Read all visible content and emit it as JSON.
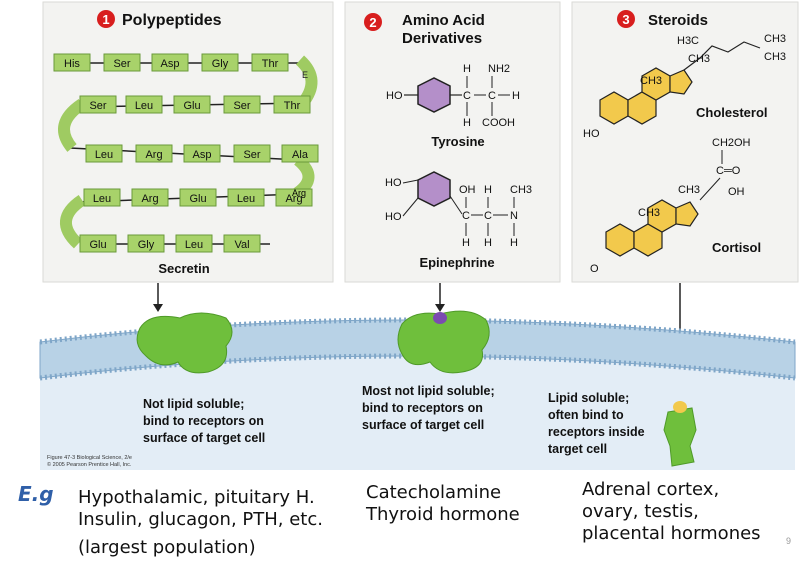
{
  "panels": [
    {
      "number": "1",
      "title": "Polypeptides",
      "caption": "Secretin"
    },
    {
      "number": "2",
      "title_line1": "Amino Acid",
      "title_line2": "Derivatives",
      "caption_top": "Tyrosine",
      "caption_bottom": "Epinephrine"
    },
    {
      "number": "3",
      "title": "Steroids",
      "caption_top": "Cholesterol",
      "caption_bottom": "Cortisol"
    }
  ],
  "secretin_rows": [
    [
      "His",
      "Ser",
      "Asp",
      "Gly",
      "Thr"
    ],
    [
      "Ser",
      "Leu",
      "Glu",
      "Ser",
      "Thr"
    ],
    [
      "Leu",
      "Arg",
      "Asp",
      "Ser",
      "Ala"
    ],
    [
      "Leu",
      "Arg",
      "Glu",
      "Leu",
      "Arg"
    ],
    [
      "Glu",
      "Gly",
      "Leu",
      "Val"
    ]
  ],
  "turn_labels": [
    "E",
    "Arg"
  ],
  "tyrosine": {
    "ho": "HO",
    "h_top": "H",
    "nh2": "NH2",
    "c": "C",
    "h_right": "H",
    "h_bottom": "H",
    "cooh": "COOH"
  },
  "epinephrine": {
    "ho": "HO",
    "oh": "OH",
    "h": "H",
    "ch3": "CH3",
    "c": "C",
    "n": "N"
  },
  "cholesterol": {
    "h3c": "H3C",
    "ch3": "CH3",
    "ho": "HO"
  },
  "cortisol": {
    "ch2oh": "CH2OH",
    "c_eq_o": "C═O",
    "ch3": "CH3",
    "oh": "OH",
    "o": "O"
  },
  "receptor_labels": [
    {
      "l1": "Not lipid soluble;",
      "l2": "bind to receptors on",
      "l3": "surface of target cell"
    },
    {
      "l1": "Most not lipid soluble;",
      "l2": "bind to receptors on",
      "l3": "surface of target cell"
    },
    {
      "l1": "Lipid soluble;",
      "l2": "often bind to",
      "l3": "receptors inside",
      "l4": "target cell"
    }
  ],
  "figure_credit": {
    "l1": "Figure 47-3  Biological Science, 2/e",
    "l2": "© 2005 Pearson Prentice Hall, Inc."
  },
  "eg_label": "E.g",
  "examples": [
    {
      "l1": "Hypothalamic, pituitary H.",
      "l2": "Insulin, glucagon, PTH, etc.",
      "l3": "(largest population)"
    },
    {
      "l1": "Catecholamine",
      "l2": "Thyroid hormone"
    },
    {
      "l1": "Adrenal cortex,",
      "l2": "ovary, testis,",
      "l3": "placental hormones"
    }
  ],
  "page_number": "9",
  "colors": {
    "panel_bg": "#f4f4f2",
    "green": "#a8d26a",
    "receptor": "#6fbf3c",
    "ring_yellow": "#f2c94c",
    "ring_purple": "#b48fc9",
    "number_red": "#d81e1e",
    "membrane_blue": "#cfe0ee"
  }
}
